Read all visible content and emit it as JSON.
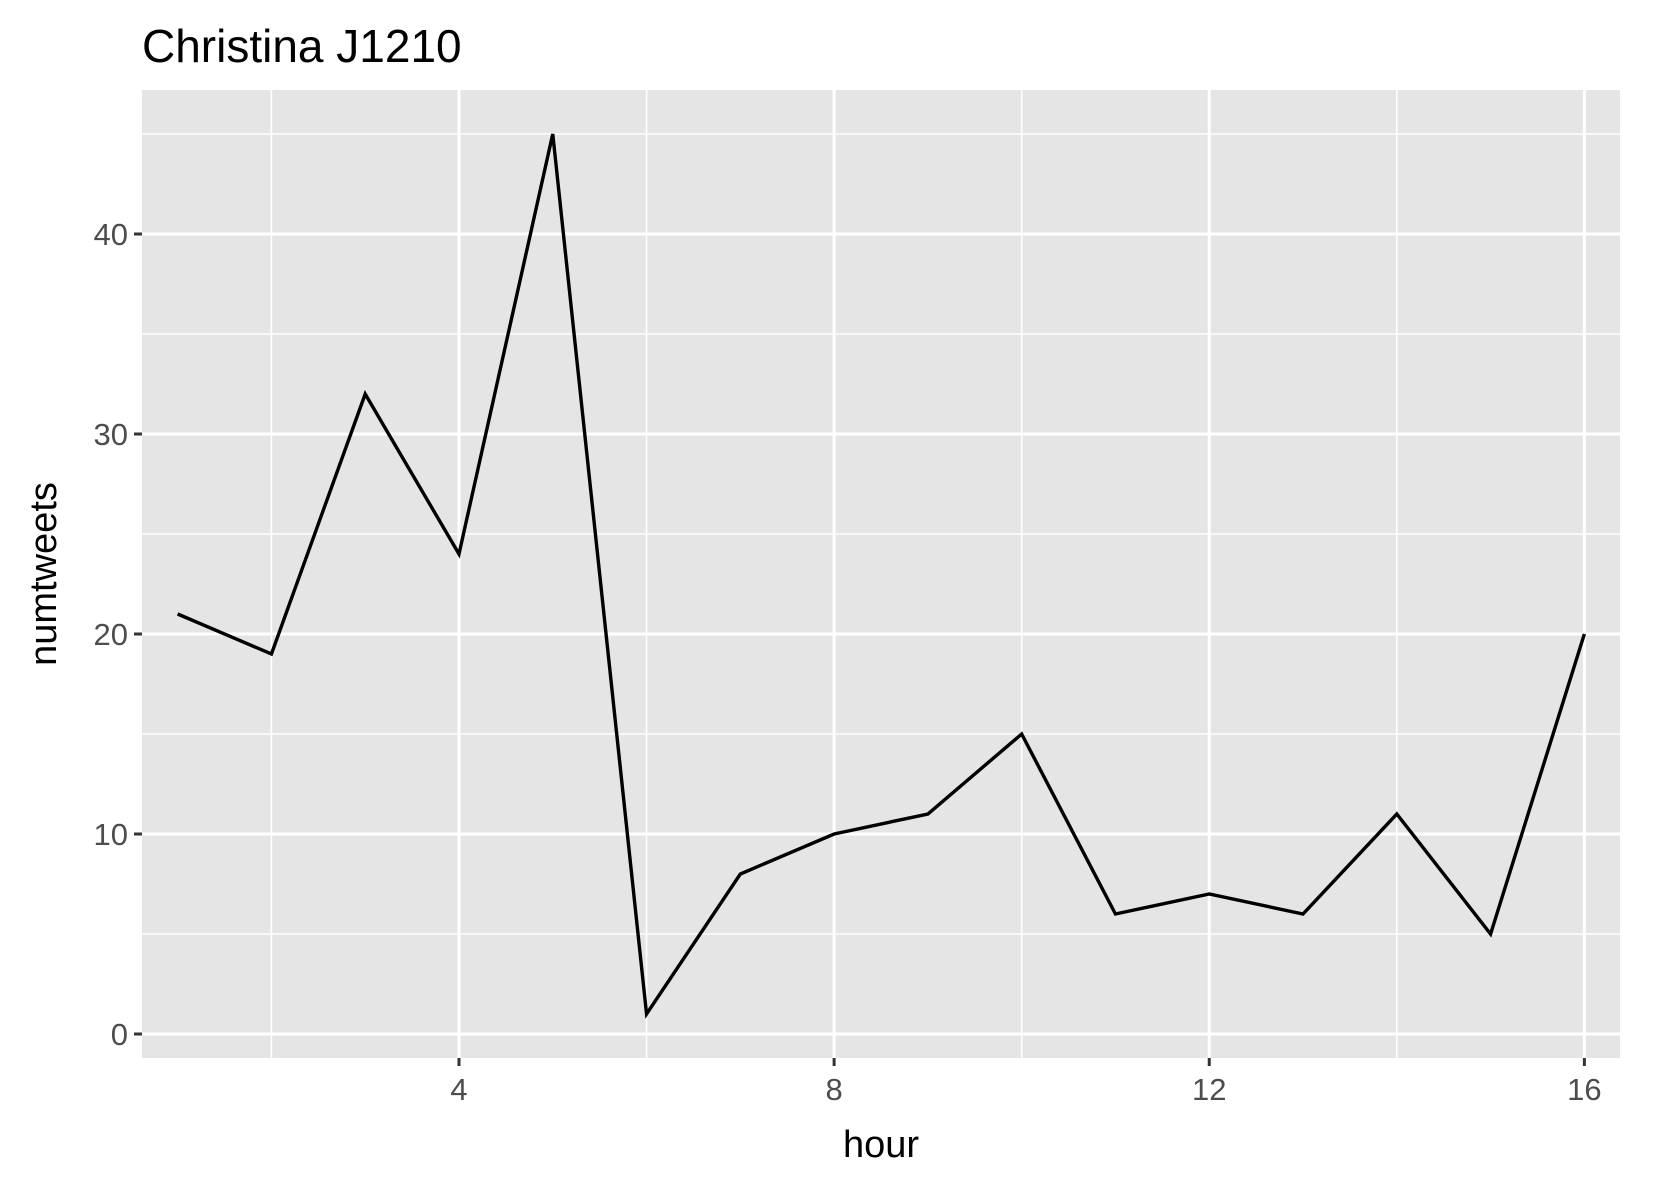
{
  "chart_data": {
    "type": "line",
    "title": "Christina J1210",
    "xlabel": "hour",
    "ylabel": "numtweets",
    "xlim": [
      0.62,
      16.38
    ],
    "ylim": [
      -1.2,
      47.2
    ],
    "x_ticks": [
      4,
      8,
      12,
      16
    ],
    "y_ticks": [
      0,
      10,
      20,
      30,
      40
    ],
    "x_tick_labels": [
      "4",
      "8",
      "12",
      "16"
    ],
    "y_tick_labels": [
      "0",
      "10",
      "20",
      "30",
      "40"
    ],
    "grid": true,
    "panel_background": "#e5e5e5",
    "grid_color": "#ffffff",
    "line_color": "#000000",
    "series": [
      {
        "x": [
          1,
          2,
          3,
          4,
          5,
          6,
          7,
          8,
          9,
          10,
          11,
          12,
          13,
          14,
          15,
          16
        ],
        "values": [
          21,
          19,
          32,
          24,
          45,
          1,
          8,
          10,
          11,
          15,
          6,
          7,
          6,
          11,
          5,
          20
        ]
      }
    ]
  }
}
